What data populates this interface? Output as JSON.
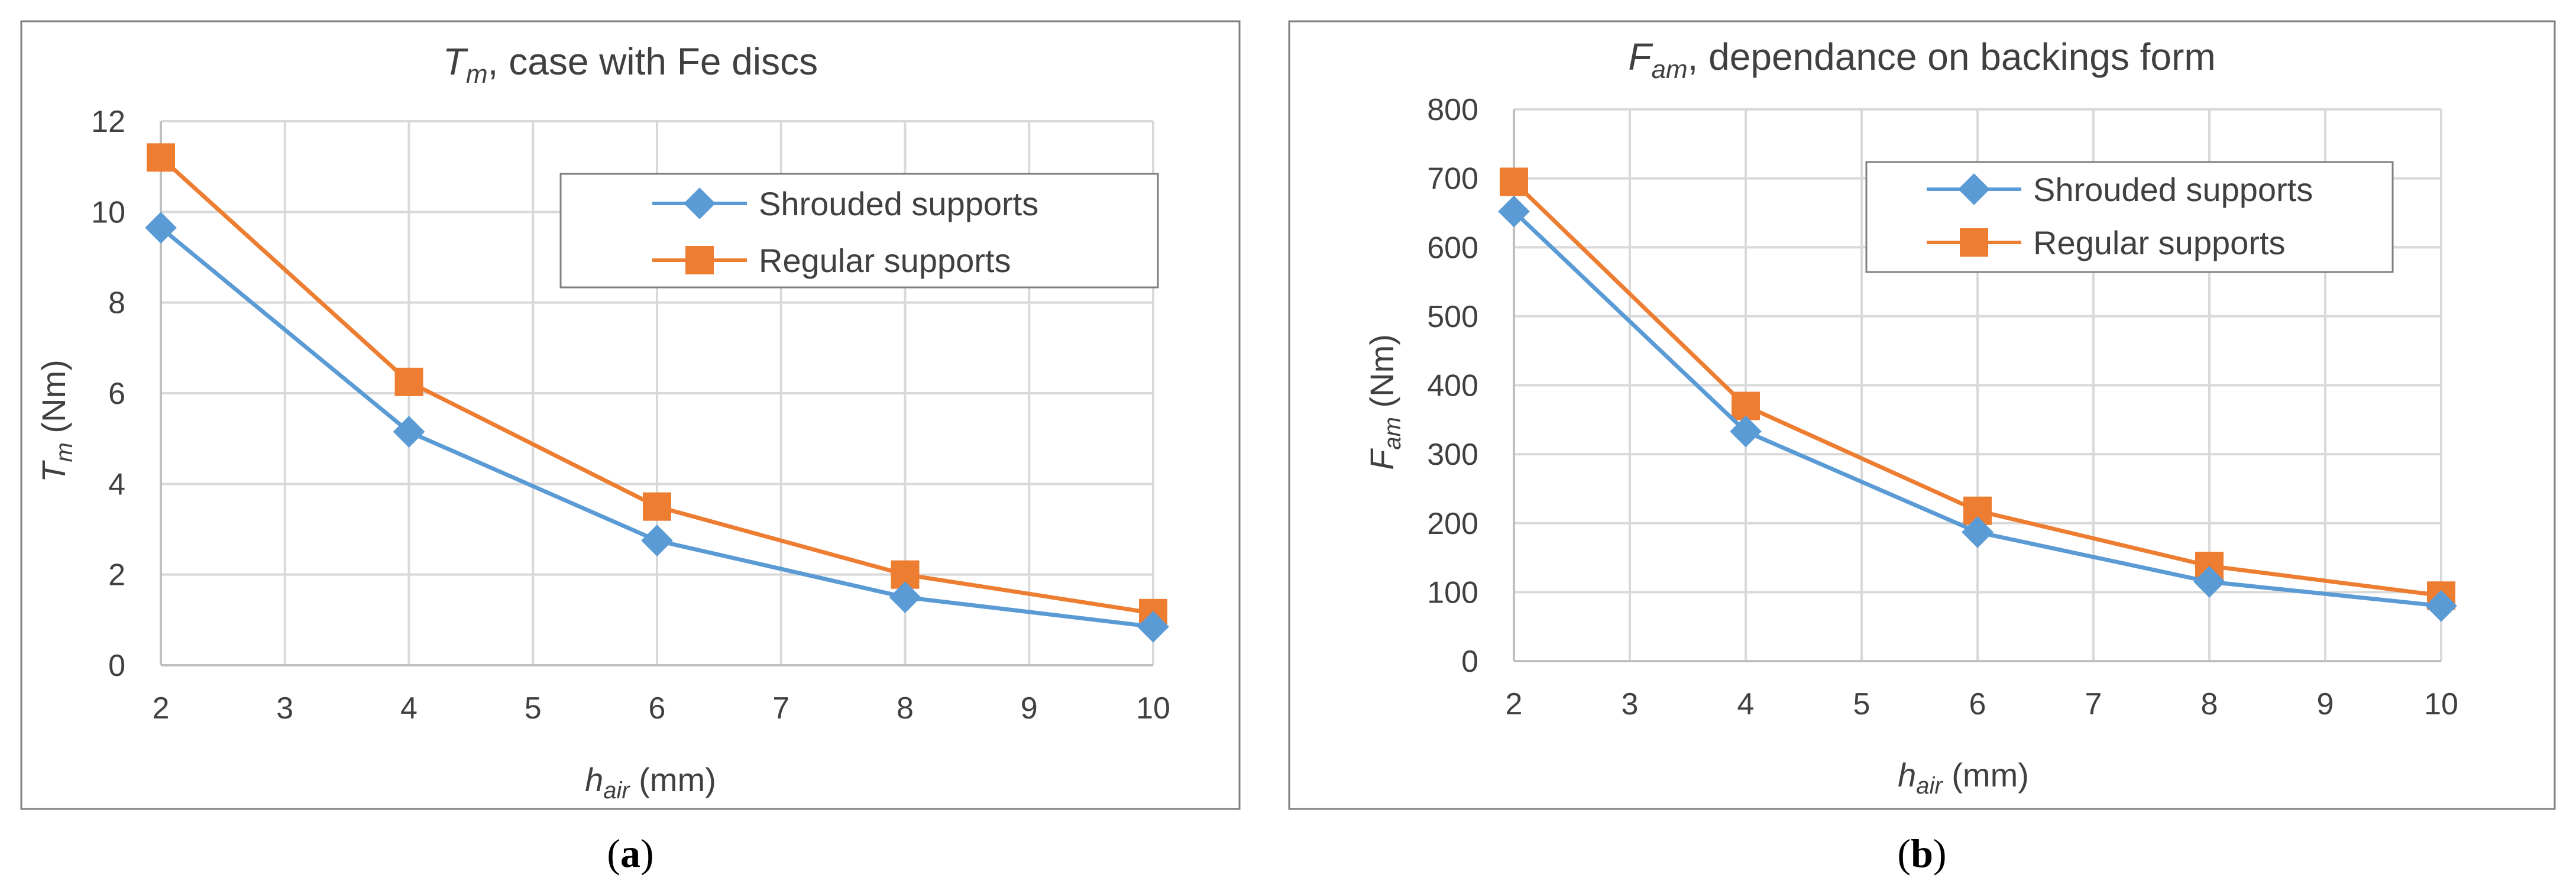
{
  "figure": {
    "panel_a_label": {
      "open": "(",
      "letter": "a",
      "close": ")"
    },
    "panel_b_label": {
      "open": "(",
      "letter": "b",
      "close": ")"
    }
  },
  "colors": {
    "series_shrouded": "#5B9BD5",
    "series_regular": "#ED7D31",
    "grid": "#D9D9D9",
    "frame": "#7F7F7F",
    "text": "#404040"
  },
  "chart_data": [
    {
      "id": "a",
      "type": "line",
      "title": {
        "main": "T",
        "sub": "m",
        "rest": ", case with Fe discs"
      },
      "xlabel": {
        "main": "h",
        "sub": "air",
        "rest": " (mm)"
      },
      "ylabel": {
        "main": "T",
        "sub": "m",
        "rest": " (Nm)"
      },
      "xlim": [
        2,
        10
      ],
      "ylim": [
        0,
        12
      ],
      "xticks": [
        "2",
        "3",
        "4",
        "5",
        "6",
        "7",
        "8",
        "9",
        "10"
      ],
      "yticks": [
        "0",
        "2",
        "4",
        "6",
        "8",
        "10",
        "12"
      ],
      "x": [
        2,
        4,
        6,
        8,
        10
      ],
      "series": [
        {
          "name": "Shrouded supports",
          "marker": "diamond",
          "values": [
            9.65,
            5.15,
            2.75,
            1.5,
            0.85
          ]
        },
        {
          "name": "Regular supports",
          "marker": "square",
          "values": [
            11.2,
            6.25,
            3.5,
            2.0,
            1.15
          ]
        }
      ],
      "legend": "top-right",
      "grid": true
    },
    {
      "id": "b",
      "type": "line",
      "title": {
        "main": "F",
        "sub": "am",
        "rest": ", dependance on backings form"
      },
      "xlabel": {
        "main": "h",
        "sub": "air",
        "rest": " (mm)"
      },
      "ylabel": {
        "main": "F",
        "sub": "am",
        "rest": " (Nm)"
      },
      "xlim": [
        2,
        10
      ],
      "ylim": [
        0,
        800
      ],
      "xticks": [
        "2",
        "3",
        "4",
        "5",
        "6",
        "7",
        "8",
        "9",
        "10"
      ],
      "yticks": [
        "0",
        "100",
        "200",
        "300",
        "400",
        "500",
        "600",
        "700",
        "800"
      ],
      "x": [
        2,
        4,
        6,
        8,
        10
      ],
      "series": [
        {
          "name": "Shrouded supports",
          "marker": "diamond",
          "values": [
            652,
            333,
            187,
            115,
            80
          ]
        },
        {
          "name": "Regular supports",
          "marker": "square",
          "values": [
            695,
            370,
            218,
            138,
            95
          ]
        }
      ],
      "legend": "top-right",
      "grid": true
    }
  ]
}
